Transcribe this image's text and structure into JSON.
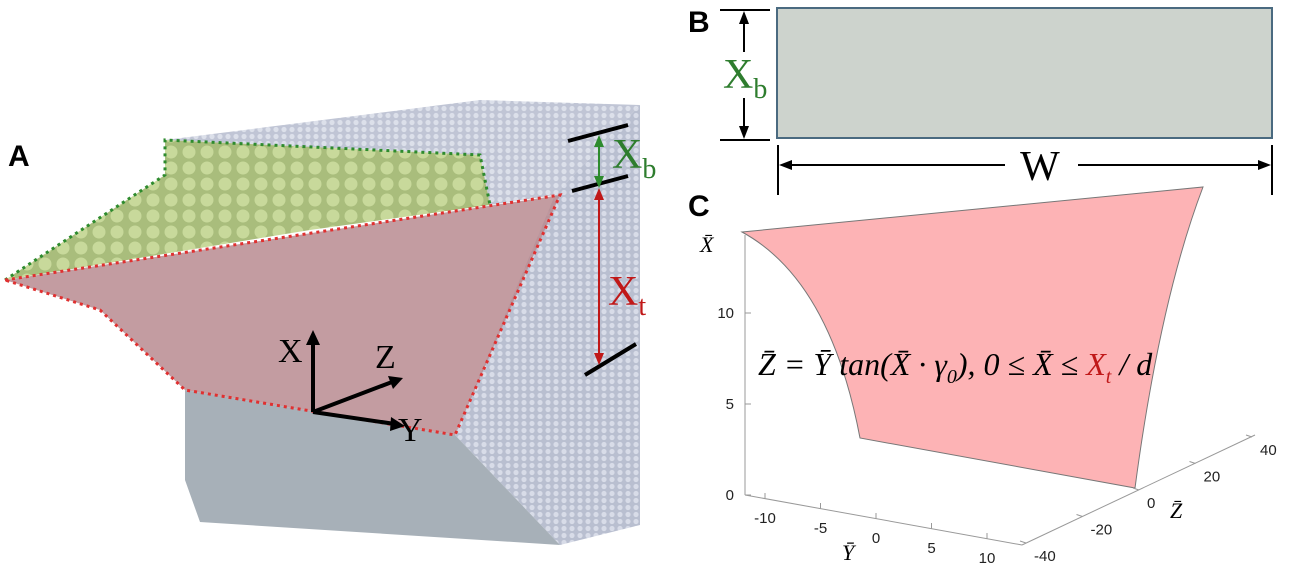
{
  "panels": {
    "a": {
      "label": "A",
      "axes": [
        "X",
        "Y",
        "Z"
      ],
      "top_layer": {
        "base": "X",
        "sub": "b"
      },
      "bottom_layer": {
        "base": "X",
        "sub": "t"
      }
    },
    "b": {
      "label": "B",
      "height": {
        "base": "X",
        "sub": "b"
      },
      "width": "W"
    },
    "c": {
      "label": "C",
      "x_axis_label": "X̄",
      "x_ticks": [
        0,
        5,
        10
      ],
      "y_axis_label": "Ȳ",
      "y_ticks": [
        -10,
        -5,
        0,
        5,
        10
      ],
      "z_axis_label": "Z̄",
      "z_ticks": [
        -40,
        -20,
        0,
        20,
        40
      ],
      "equation": [
        "Z̄ = Ȳ tan(X̄ · γ",
        "0",
        "),  0 ≤ X̄ ≤ ",
        "X",
        "t",
        " / d"
      ]
    }
  }
}
